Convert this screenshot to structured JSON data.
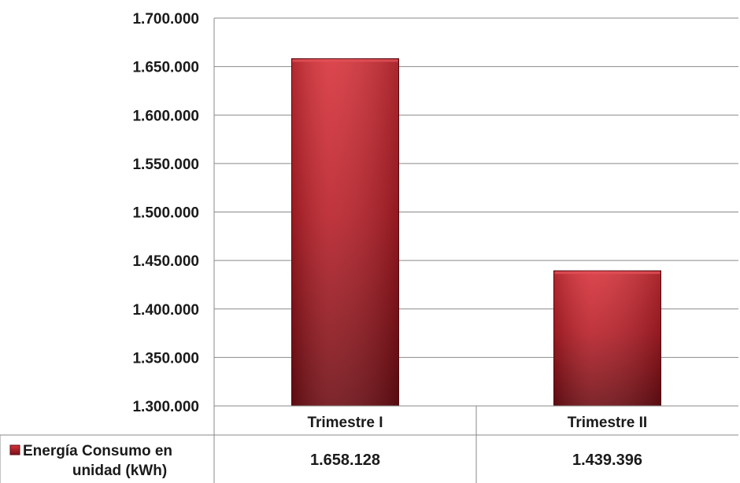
{
  "chart_data": {
    "type": "bar",
    "categories": [
      "Trimestre I",
      "Trimestre II"
    ],
    "series": [
      {
        "name": "Energía Consumo en unidad (kWh)",
        "values": [
          1658128,
          1439396
        ],
        "value_labels": [
          "1.658.128",
          "1.439.396"
        ],
        "color": "#b71c25"
      }
    ],
    "ylim": [
      1300000,
      1700000
    ],
    "y_ticks": [
      {
        "value": 1300000,
        "label": "1.300.000"
      },
      {
        "value": 1350000,
        "label": "1.350.000"
      },
      {
        "value": 1400000,
        "label": "1.400.000"
      },
      {
        "value": 1450000,
        "label": "1.450.000"
      },
      {
        "value": 1500000,
        "label": "1.500.000"
      },
      {
        "value": 1550000,
        "label": "1.550.000"
      },
      {
        "value": 1600000,
        "label": "1.600.000"
      },
      {
        "value": 1650000,
        "label": "1.650.000"
      },
      {
        "value": 1700000,
        "label": "1.700.000"
      }
    ],
    "grid": true,
    "legend": {
      "placement": "data-table-left",
      "lines": [
        "Energía Consumo en",
        "unidad (kWh)"
      ]
    },
    "data_table": true
  }
}
